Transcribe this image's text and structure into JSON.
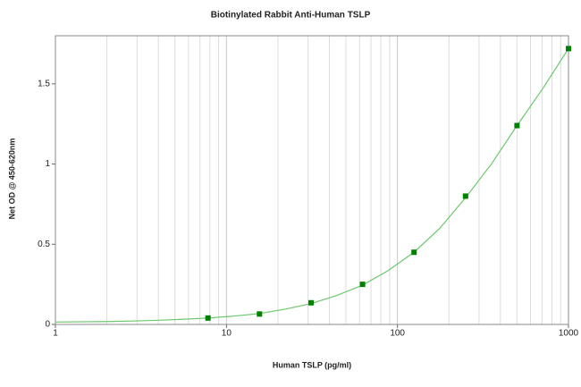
{
  "chart_data": {
    "type": "scatter",
    "title": "Biotinylated Rabbit Anti-Human TSLP",
    "x_label": "Human TSLP (pg/ml)",
    "y_label": "Net OD @ 450-620nm",
    "x_log": true,
    "xlim": [
      1,
      1000
    ],
    "ylim": [
      0,
      1.8
    ],
    "xticks": [
      1,
      10,
      100,
      1000
    ],
    "xminorticks": [
      2,
      3,
      4,
      5,
      6,
      7,
      8,
      9,
      20,
      30,
      40,
      50,
      60,
      70,
      80,
      90,
      200,
      300,
      400,
      500,
      600,
      700,
      800,
      900
    ],
    "yticks": [
      0,
      0.5,
      1,
      1.5
    ],
    "grid": true,
    "series": [
      {
        "style": "line",
        "color": "#6cc86c",
        "x": [
          1,
          2,
          3,
          4,
          5.5,
          7.8,
          11,
          15.6,
          22,
          31.25,
          44,
          62.5,
          88,
          125,
          177,
          250,
          354,
          500,
          707,
          1000
        ],
        "values": [
          0.015,
          0.018,
          0.022,
          0.026,
          0.032,
          0.04,
          0.052,
          0.068,
          0.095,
          0.13,
          0.18,
          0.245,
          0.335,
          0.45,
          0.6,
          0.79,
          1.0,
          1.24,
          1.47,
          1.72
        ]
      },
      {
        "style": "markers",
        "color": "#008000",
        "x": [
          7.8,
          15.6,
          31.25,
          62.5,
          125,
          250,
          500,
          1000
        ],
        "values": [
          0.04,
          0.065,
          0.135,
          0.25,
          0.45,
          0.8,
          1.24,
          1.72
        ]
      }
    ]
  }
}
